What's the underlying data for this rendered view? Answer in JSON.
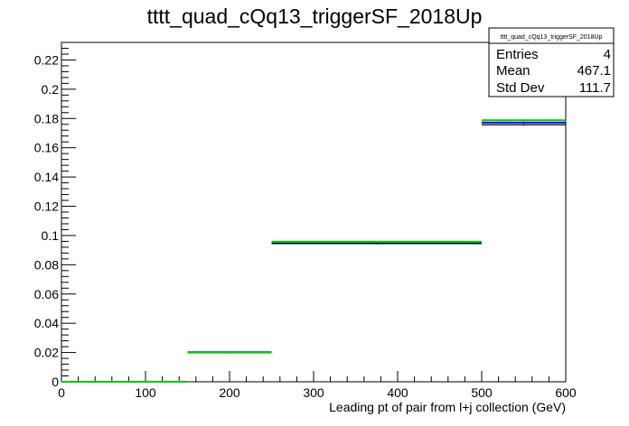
{
  "title": "tttt_quad_cQq13_triggerSF_2018Up",
  "stats_box": {
    "name": "tttt_quad_cQq13_triggerSF_2018Up",
    "rows": [
      {
        "label": "Entries",
        "value": "4"
      },
      {
        "label": "Mean",
        "value": "467.1"
      },
      {
        "label": "Std Dev",
        "value": "111.7"
      }
    ]
  },
  "chart_data": {
    "type": "step",
    "title": "tttt_quad_cQq13_triggerSF_2018Up",
    "xlabel": "Leading pt of pair from l+j collection (GeV)",
    "ylabel": "",
    "xlim": [
      0,
      600
    ],
    "ylim": [
      0,
      0.232
    ],
    "x_ticks": [
      0,
      100,
      200,
      300,
      400,
      500,
      600
    ],
    "x_tick_labels": [
      "0",
      "100",
      "200",
      "300",
      "400",
      "500",
      "600"
    ],
    "y_ticks": [
      0,
      0.02,
      0.04,
      0.06,
      0.08,
      0.1,
      0.12,
      0.14,
      0.16,
      0.18,
      0.2,
      0.22
    ],
    "y_tick_labels": [
      "0",
      "0.02",
      "0.04",
      "0.06",
      "0.08",
      "0.1",
      "0.12",
      "0.14",
      "0.16",
      "0.18",
      "0.2",
      "0.22"
    ],
    "bin_edges": [
      0,
      150,
      250,
      500,
      600
    ],
    "series": [
      {
        "color": "#0000ff",
        "values": [
          0.0,
          0.0202,
          0.0951,
          0.1772
        ]
      },
      {
        "color": "#00cc00",
        "values": [
          0.0,
          0.02,
          0.0957,
          0.1788
        ]
      },
      {
        "color": "#000000",
        "values": [
          0.0,
          0.0199,
          0.0945,
          0.1757
        ]
      }
    ],
    "grid": false,
    "legend": "top-right"
  },
  "colors": {
    "background": "#ffffff",
    "axis": "#000000"
  }
}
